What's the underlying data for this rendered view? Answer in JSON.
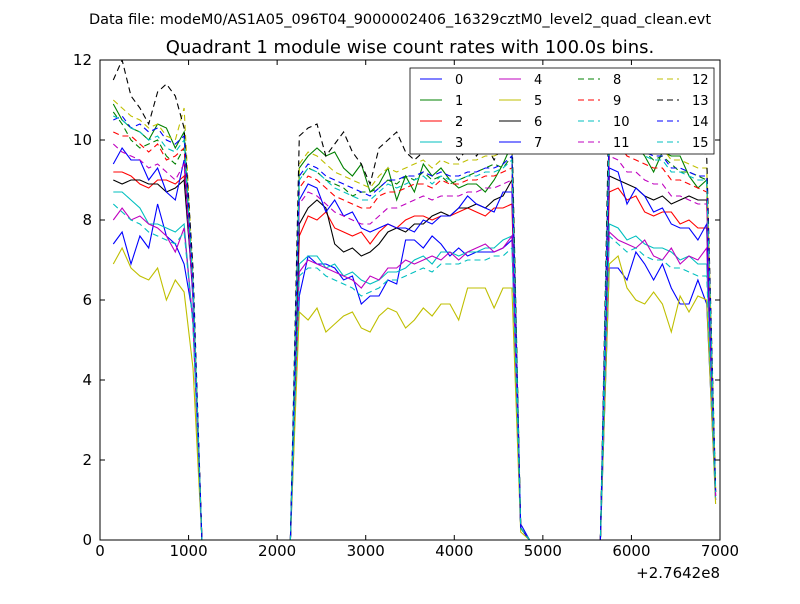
{
  "suptitle": "Data file: modeM0/AS1A05_096T04_9000002406_16329cztM0_level2_quad_clean.evt",
  "chart_data": {
    "type": "line",
    "title": "Quadrant 1 module wise count rates with 100.0s bins.",
    "xlabel": "",
    "ylabel": "",
    "x_offset_label": "+2.7642e8",
    "xlim": [
      0,
      7000
    ],
    "ylim": [
      0,
      12
    ],
    "xticks": [
      0,
      1000,
      2000,
      3000,
      4000,
      5000,
      6000,
      7000
    ],
    "yticks": [
      0,
      2,
      4,
      6,
      8,
      10,
      12
    ],
    "grid": false,
    "legend": {
      "location": "top-right",
      "columns": 4
    },
    "x": [
      150,
      250,
      350,
      450,
      550,
      650,
      750,
      850,
      950,
      1050,
      1150,
      1250,
      1350,
      1450,
      1550,
      1650,
      1750,
      1850,
      1950,
      2050,
      2150,
      2250,
      2350,
      2450,
      2550,
      2650,
      2750,
      2850,
      2950,
      3050,
      3150,
      3250,
      3350,
      3450,
      3550,
      3650,
      3750,
      3850,
      3950,
      4050,
      4150,
      4250,
      4350,
      4450,
      4550,
      4650,
      4750,
      4850,
      4950,
      5050,
      5150,
      5250,
      5350,
      5450,
      5550,
      5650,
      5750,
      5850,
      5950,
      6050,
      6150,
      6250,
      6350,
      6450,
      6550,
      6650,
      6750,
      6850,
      6950
    ],
    "series": [
      {
        "name": "0",
        "color": "#0000ff",
        "dash": "solid",
        "values": [
          7.4,
          7.7,
          6.9,
          7.6,
          7.3,
          8.4,
          7.6,
          7.4,
          6.9,
          5.6,
          0,
          0,
          0,
          0,
          0,
          0,
          0,
          0,
          0,
          0,
          0,
          6.1,
          7.1,
          6.9,
          6.9,
          6.8,
          6.5,
          6.6,
          5.9,
          6.1,
          6.1,
          6.5,
          6.4,
          7.5,
          7.5,
          7.3,
          7.6,
          7.4,
          7.1,
          7.3,
          7.1,
          7.2,
          7.2,
          7.2,
          7.3,
          7.5,
          0.4,
          0,
          0,
          0,
          0,
          0,
          0,
          0,
          0,
          0,
          6.8,
          6.8,
          6.5,
          7.2,
          6.9,
          6.5,
          6.9,
          6.3,
          5.9,
          5.9,
          6.5,
          5.9,
          1.0
        ]
      },
      {
        "name": "1",
        "color": "#008000",
        "dash": "solid",
        "values": [
          10.9,
          10.5,
          10.3,
          10.2,
          10.0,
          10.4,
          10.3,
          9.8,
          10.2,
          6.1,
          0,
          0,
          0,
          0,
          0,
          0,
          0,
          0,
          0,
          0,
          0,
          9.3,
          9.6,
          9.8,
          9.6,
          9.7,
          9.3,
          9.1,
          9.4,
          8.7,
          8.9,
          9.3,
          8.5,
          9.1,
          8.7,
          9.4,
          9.1,
          9.3,
          9.0,
          8.8,
          8.9,
          8.9,
          8.7,
          9.0,
          9.4,
          9.9,
          0.3,
          0,
          0,
          0,
          0,
          0,
          0,
          0,
          0,
          0,
          9.7,
          9.9,
          10.1,
          9.9,
          9.6,
          9.2,
          9.7,
          9.6,
          9.6,
          9.1,
          8.8,
          9.0,
          1.2
        ]
      },
      {
        "name": "2",
        "color": "#ff0000",
        "dash": "solid",
        "values": [
          9.2,
          9.2,
          9.1,
          8.9,
          8.8,
          9.0,
          9.0,
          8.9,
          9.1,
          6.3,
          0,
          0,
          0,
          0,
          0,
          0,
          0,
          0,
          0,
          0,
          0,
          7.6,
          8.1,
          8.0,
          8.2,
          7.8,
          7.7,
          7.6,
          7.7,
          7.4,
          7.7,
          7.9,
          7.8,
          8.0,
          8.1,
          8.1,
          8.0,
          8.1,
          8.1,
          8.2,
          8.3,
          8.2,
          8.1,
          8.3,
          8.3,
          8.4,
          0.3,
          0,
          0,
          0,
          0,
          0,
          0,
          0,
          0,
          0,
          8.7,
          8.8,
          8.5,
          8.6,
          8.2,
          8.1,
          8.2,
          8.2,
          7.9,
          8.0,
          7.8,
          7.8,
          1.1
        ]
      },
      {
        "name": "3",
        "color": "#00bfbf",
        "dash": "solid",
        "values": [
          8.7,
          8.7,
          8.5,
          8.3,
          7.9,
          7.9,
          7.8,
          7.7,
          7.9,
          5.4,
          0,
          0,
          0,
          0,
          0,
          0,
          0,
          0,
          0,
          0,
          0,
          6.9,
          7.1,
          7.1,
          6.8,
          6.9,
          6.6,
          6.7,
          6.5,
          6.4,
          6.5,
          6.7,
          6.7,
          6.8,
          7.0,
          7.1,
          6.9,
          7.2,
          7.2,
          7.1,
          7.2,
          7.2,
          7.3,
          7.3,
          7.5,
          7.6,
          0.3,
          0,
          0,
          0,
          0,
          0,
          0,
          0,
          0,
          0,
          7.9,
          7.8,
          7.5,
          7.6,
          7.4,
          7.3,
          7.3,
          7.2,
          7.0,
          7.1,
          6.9,
          6.9,
          1.0
        ]
      },
      {
        "name": "4",
        "color": "#bf00bf",
        "dash": "solid",
        "values": [
          8.0,
          8.3,
          8.0,
          8.1,
          7.9,
          7.8,
          7.6,
          7.2,
          7.8,
          5.4,
          0,
          0,
          0,
          0,
          0,
          0,
          0,
          0,
          0,
          0,
          0,
          6.7,
          7.0,
          6.9,
          6.8,
          6.7,
          6.6,
          6.5,
          6.3,
          6.6,
          6.5,
          6.8,
          6.8,
          7.0,
          6.9,
          7.0,
          7.1,
          7.0,
          7.2,
          7.0,
          7.2,
          7.3,
          7.4,
          7.2,
          7.3,
          7.6,
          0.3,
          0,
          0,
          0,
          0,
          0,
          0,
          0,
          0,
          0,
          7.7,
          7.5,
          7.4,
          7.3,
          7.5,
          7.1,
          7.0,
          7.3,
          6.9,
          7.1,
          7.0,
          7.3,
          1.0
        ]
      },
      {
        "name": "5",
        "color": "#bfbf00",
        "dash": "solid",
        "values": [
          6.9,
          7.3,
          6.8,
          6.6,
          6.5,
          6.8,
          6.0,
          6.5,
          6.2,
          4.3,
          0,
          0,
          0,
          0,
          0,
          0,
          0,
          0,
          0,
          0,
          0,
          5.7,
          5.5,
          5.8,
          5.2,
          5.4,
          5.6,
          5.7,
          5.3,
          5.2,
          5.6,
          5.8,
          5.7,
          5.3,
          5.5,
          5.8,
          5.6,
          5.9,
          5.9,
          5.5,
          6.3,
          6.3,
          6.3,
          5.8,
          6.3,
          6.3,
          0.2,
          0,
          0,
          0,
          0,
          0,
          0,
          0,
          0,
          0,
          6.9,
          7.1,
          6.3,
          6.0,
          5.9,
          6.2,
          5.9,
          5.2,
          6.1,
          5.7,
          6.1,
          6.0,
          0.9
        ]
      },
      {
        "name": "6",
        "color": "#000000",
        "dash": "solid",
        "values": [
          9.0,
          8.9,
          9.0,
          9.0,
          8.9,
          8.9,
          8.7,
          8.8,
          9.0,
          6.2,
          0,
          0,
          0,
          0,
          0,
          0,
          0,
          0,
          0,
          0,
          0,
          7.9,
          8.3,
          8.5,
          8.3,
          7.4,
          7.2,
          7.3,
          7.1,
          7.2,
          7.4,
          7.7,
          7.8,
          7.7,
          7.9,
          7.9,
          8.1,
          8.2,
          8.1,
          8.3,
          8.3,
          8.4,
          8.3,
          8.5,
          8.6,
          9.0,
          0.3,
          0,
          0,
          0,
          0,
          0,
          0,
          0,
          0,
          0,
          9.1,
          9.0,
          8.9,
          8.8,
          8.6,
          8.5,
          8.6,
          8.4,
          8.5,
          8.6,
          8.5,
          8.5,
          1.2
        ]
      },
      {
        "name": "7",
        "color": "#0000ff",
        "dash": "solid",
        "values": [
          9.4,
          9.8,
          9.5,
          9.5,
          9.0,
          9.3,
          8.7,
          8.5,
          9.5,
          6.0,
          0,
          0,
          0,
          0,
          0,
          0,
          0,
          0,
          0,
          0,
          0,
          8.5,
          8.9,
          8.8,
          8.2,
          8.5,
          8.1,
          8.2,
          7.8,
          7.7,
          7.8,
          7.9,
          7.8,
          7.8,
          7.7,
          8.0,
          7.9,
          8.1,
          8.1,
          8.3,
          8.6,
          8.4,
          8.3,
          8.2,
          8.7,
          8.7,
          0.3,
          0,
          0,
          0,
          0,
          0,
          0,
          0,
          0,
          0,
          9.3,
          9.2,
          8.4,
          8.8,
          8.6,
          8.2,
          8.3,
          7.9,
          7.8,
          7.8,
          7.5,
          7.9,
          1.1
        ]
      },
      {
        "name": "8",
        "color": "#008000",
        "dash": "dash",
        "values": [
          10.7,
          10.4,
          10.0,
          9.8,
          9.9,
          10.0,
          9.6,
          9.4,
          9.8,
          6.3,
          0,
          0,
          0,
          0,
          0,
          0,
          0,
          0,
          0,
          0,
          0,
          9.0,
          9.3,
          9.2,
          9.0,
          8.9,
          8.8,
          8.6,
          8.7,
          8.7,
          8.8,
          9.0,
          8.9,
          9.1,
          9.0,
          9.2,
          9.0,
          9.1,
          8.9,
          9.0,
          9.1,
          9.2,
          9.3,
          9.4,
          9.3,
          9.6,
          0.3,
          0,
          0,
          0,
          0,
          0,
          0,
          0,
          0,
          0,
          10.2,
          10.0,
          9.8,
          9.9,
          9.7,
          9.5,
          9.6,
          9.4,
          9.2,
          9.2,
          9.1,
          9.0,
          1.2
        ]
      },
      {
        "name": "9",
        "color": "#ff0000",
        "dash": "dash",
        "values": [
          10.2,
          10.1,
          10.1,
          9.9,
          9.7,
          9.9,
          9.5,
          9.6,
          9.8,
          6.3,
          0,
          0,
          0,
          0,
          0,
          0,
          0,
          0,
          0,
          0,
          0,
          8.8,
          9.1,
          9.0,
          8.8,
          8.6,
          8.5,
          8.4,
          8.3,
          8.3,
          8.6,
          8.7,
          8.7,
          8.8,
          8.9,
          8.9,
          8.8,
          9.0,
          8.9,
          8.9,
          9.0,
          9.0,
          9.1,
          9.1,
          9.2,
          9.3,
          0.3,
          0,
          0,
          0,
          0,
          0,
          0,
          0,
          0,
          0,
          10.0,
          9.9,
          9.6,
          9.5,
          9.4,
          9.3,
          9.3,
          9.0,
          9.0,
          8.9,
          8.8,
          8.7,
          1.2
        ]
      },
      {
        "name": "10",
        "color": "#00bfbf",
        "dash": "dash",
        "values": [
          8.4,
          8.2,
          8.0,
          7.9,
          7.7,
          7.6,
          7.5,
          7.4,
          7.7,
          5.4,
          0,
          0,
          0,
          0,
          0,
          0,
          0,
          0,
          0,
          0,
          0,
          6.6,
          6.8,
          6.8,
          6.6,
          6.5,
          6.4,
          6.3,
          6.1,
          6.2,
          6.3,
          6.5,
          6.5,
          6.6,
          6.7,
          6.8,
          6.7,
          6.9,
          6.9,
          6.9,
          7.0,
          7.0,
          7.0,
          7.1,
          7.1,
          7.3,
          0.3,
          0,
          0,
          0,
          0,
          0,
          0,
          0,
          0,
          0,
          7.6,
          7.4,
          7.2,
          7.3,
          7.1,
          7.0,
          7.0,
          6.8,
          6.8,
          6.7,
          6.6,
          6.6,
          1.0
        ]
      },
      {
        "name": "11",
        "color": "#bf00bf",
        "dash": "dash",
        "values": [
          9.9,
          9.7,
          9.6,
          9.5,
          9.3,
          9.4,
          9.2,
          9.0,
          9.4,
          6.1,
          0,
          0,
          0,
          0,
          0,
          0,
          0,
          0,
          0,
          0,
          0,
          8.4,
          8.7,
          8.6,
          8.4,
          8.2,
          8.1,
          8.0,
          7.9,
          7.9,
          8.1,
          8.3,
          8.3,
          8.4,
          8.5,
          8.6,
          8.5,
          8.6,
          8.6,
          8.6,
          8.7,
          8.7,
          8.8,
          8.8,
          8.9,
          9.0,
          0.3,
          0,
          0,
          0,
          0,
          0,
          0,
          0,
          0,
          0,
          9.6,
          9.5,
          9.2,
          9.2,
          9.0,
          8.9,
          8.9,
          8.6,
          8.6,
          8.5,
          8.4,
          8.4,
          1.1
        ]
      },
      {
        "name": "12",
        "color": "#bfbf00",
        "dash": "dash",
        "values": [
          11.0,
          10.8,
          10.6,
          10.5,
          10.3,
          10.4,
          10.1,
          10.0,
          10.8,
          6.6,
          0,
          0,
          0,
          0,
          0,
          0,
          0,
          0,
          0,
          0,
          0,
          9.4,
          9.7,
          9.6,
          9.4,
          9.2,
          9.1,
          9.0,
          8.9,
          8.8,
          9.1,
          9.3,
          9.2,
          9.3,
          9.4,
          9.5,
          9.3,
          9.5,
          9.4,
          9.4,
          9.5,
          9.5,
          9.6,
          9.6,
          9.7,
          9.9,
          0.3,
          0,
          0,
          0,
          0,
          0,
          0,
          0,
          0,
          0,
          10.6,
          10.4,
          10.2,
          10.1,
          9.9,
          9.8,
          9.8,
          9.5,
          9.5,
          9.4,
          9.3,
          9.3,
          1.3
        ]
      },
      {
        "name": "13",
        "color": "#000000",
        "dash": "dash",
        "values": [
          11.5,
          12.0,
          11.1,
          10.8,
          10.4,
          11.2,
          11.4,
          11.1,
          10.3,
          6.8,
          0,
          0,
          0,
          0,
          0,
          0,
          0,
          0,
          0,
          0,
          0,
          10.1,
          10.3,
          10.4,
          9.6,
          9.9,
          10.2,
          9.7,
          9.4,
          8.9,
          9.8,
          10.0,
          10.2,
          9.7,
          9.5,
          9.7,
          9.9,
          10.1,
          9.8,
          9.5,
          9.8,
          9.6,
          9.9,
          9.5,
          9.9,
          10.3,
          0.3,
          0,
          0,
          0,
          0,
          0,
          0,
          0,
          0,
          0,
          11.3,
          11.1,
          11.2,
          10.7,
          10.2,
          10.1,
          10.5,
          10.8,
          10.1,
          10.4,
          9.9,
          9.6,
          1.3
        ]
      },
      {
        "name": "14",
        "color": "#0000ff",
        "dash": "dash",
        "values": [
          10.5,
          10.6,
          10.3,
          10.4,
          10.2,
          10.3,
          10.0,
          9.9,
          10.1,
          6.5,
          0,
          0,
          0,
          0,
          0,
          0,
          0,
          0,
          0,
          0,
          0,
          9.1,
          9.4,
          9.3,
          9.1,
          9.0,
          8.9,
          8.8,
          8.7,
          8.6,
          8.8,
          9.0,
          9.0,
          9.1,
          9.1,
          9.2,
          9.1,
          9.2,
          9.1,
          9.1,
          9.2,
          9.2,
          9.3,
          9.3,
          9.4,
          9.6,
          0.3,
          0,
          0,
          0,
          0,
          0,
          0,
          0,
          0,
          0,
          10.3,
          10.1,
          9.9,
          9.9,
          9.7,
          9.6,
          9.6,
          9.3,
          9.3,
          9.2,
          9.1,
          9.1,
          1.2
        ]
      },
      {
        "name": "15",
        "color": "#00bfbf",
        "dash": "dash",
        "values": [
          10.6,
          10.5,
          10.3,
          10.2,
          10.0,
          10.1,
          9.8,
          9.7,
          10.0,
          6.4,
          0,
          0,
          0,
          0,
          0,
          0,
          0,
          0,
          0,
          0,
          0,
          9.0,
          9.3,
          9.2,
          9.0,
          8.8,
          8.7,
          8.6,
          8.5,
          8.5,
          8.7,
          8.9,
          8.8,
          8.9,
          9.0,
          9.1,
          8.9,
          9.1,
          9.0,
          9.0,
          9.1,
          9.1,
          9.2,
          9.2,
          9.3,
          9.5,
          0.3,
          0,
          0,
          0,
          0,
          0,
          0,
          0,
          0,
          0,
          10.2,
          10.0,
          9.8,
          9.8,
          9.6,
          9.5,
          9.5,
          9.2,
          9.2,
          9.1,
          9.0,
          9.0,
          1.2
        ]
      }
    ]
  }
}
